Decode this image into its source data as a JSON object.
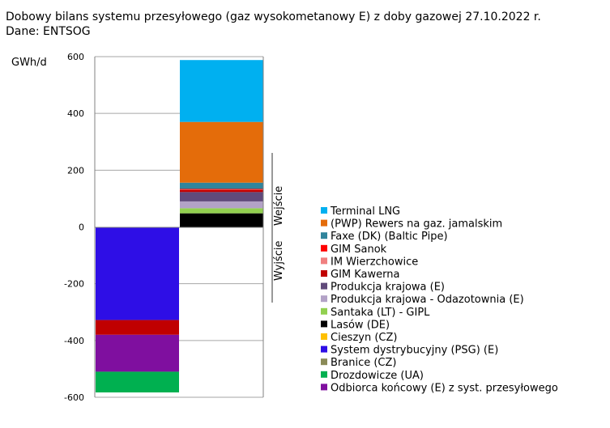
{
  "chart_data": {
    "type": "bar",
    "stacked": true,
    "title": "Dobowy bilans systemu przesyłowego (gaz wysokometanowy E) z doby gazowej 27.10.2022 r.",
    "subtitle": "Dane: ENTSOG",
    "ylabel": "GWh/d",
    "ylim": [
      -600,
      600
    ],
    "yticks": [
      600,
      400,
      200,
      0,
      -200,
      -400,
      -600
    ],
    "grid": true,
    "legend_position": "right",
    "categories": [
      "Wyjście",
      "Wejście"
    ],
    "side_labels": {
      "positive": "Wejście",
      "negative": "Wyjście"
    },
    "series": [
      {
        "name": "Terminal LNG",
        "color": "#00b0f0",
        "values": [
          0,
          218
        ]
      },
      {
        "name": "(PWP) Rewers na gaz. jamalskim",
        "color": "#e46c0a",
        "values": [
          0,
          214
        ]
      },
      {
        "name": "Faxe (DK) (Baltic Pipe)",
        "color": "#31859c",
        "values": [
          0,
          22
        ]
      },
      {
        "name": "GIM Sanok",
        "color": "#ff0000",
        "values": [
          0,
          3
        ]
      },
      {
        "name": "IM Wierzchowice",
        "color": "#f08080",
        "values": [
          0,
          1
        ]
      },
      {
        "name": "GIM Kawerna",
        "color": "#c00000",
        "values": [
          0,
          7
        ]
      },
      {
        "name": "Produkcja krajowa (E)",
        "color": "#604a7b",
        "values": [
          0,
          33
        ]
      },
      {
        "name": "Produkcja krajowa - Odazotownia (E)",
        "color": "#b3a2c7",
        "values": [
          0,
          24
        ]
      },
      {
        "name": "Santaka (LT) - GIPL",
        "color": "#92d050",
        "values": [
          0,
          18
        ]
      },
      {
        "name": "Lasów (DE)",
        "color": "#000000",
        "values": [
          0,
          48
        ]
      },
      {
        "name": "Cieszyn (CZ)",
        "color": "#ffc000",
        "values": [
          0,
          0
        ]
      },
      {
        "name": "System dystrybucyjny (PSG) (E)",
        "color": "#2e0ee6",
        "values": [
          -328,
          0
        ]
      },
      {
        "name": "Branice (CZ)",
        "color": "#8a8a57",
        "values": [
          0,
          0
        ]
      },
      {
        "name": "Drozdowicze (UA)",
        "color": "#00b050",
        "values": [
          -73,
          0
        ]
      },
      {
        "name": "Odbiorca końcowy (E) z syst. przesyłowego",
        "color": "#7f0f9f",
        "values": [
          -130,
          0
        ]
      }
    ],
    "extra_segments": [
      {
        "category": "Wyjście",
        "color": "#c00000",
        "value": -52
      }
    ],
    "negative_stack_order": [
      11,
      "extra0",
      14,
      13
    ]
  }
}
